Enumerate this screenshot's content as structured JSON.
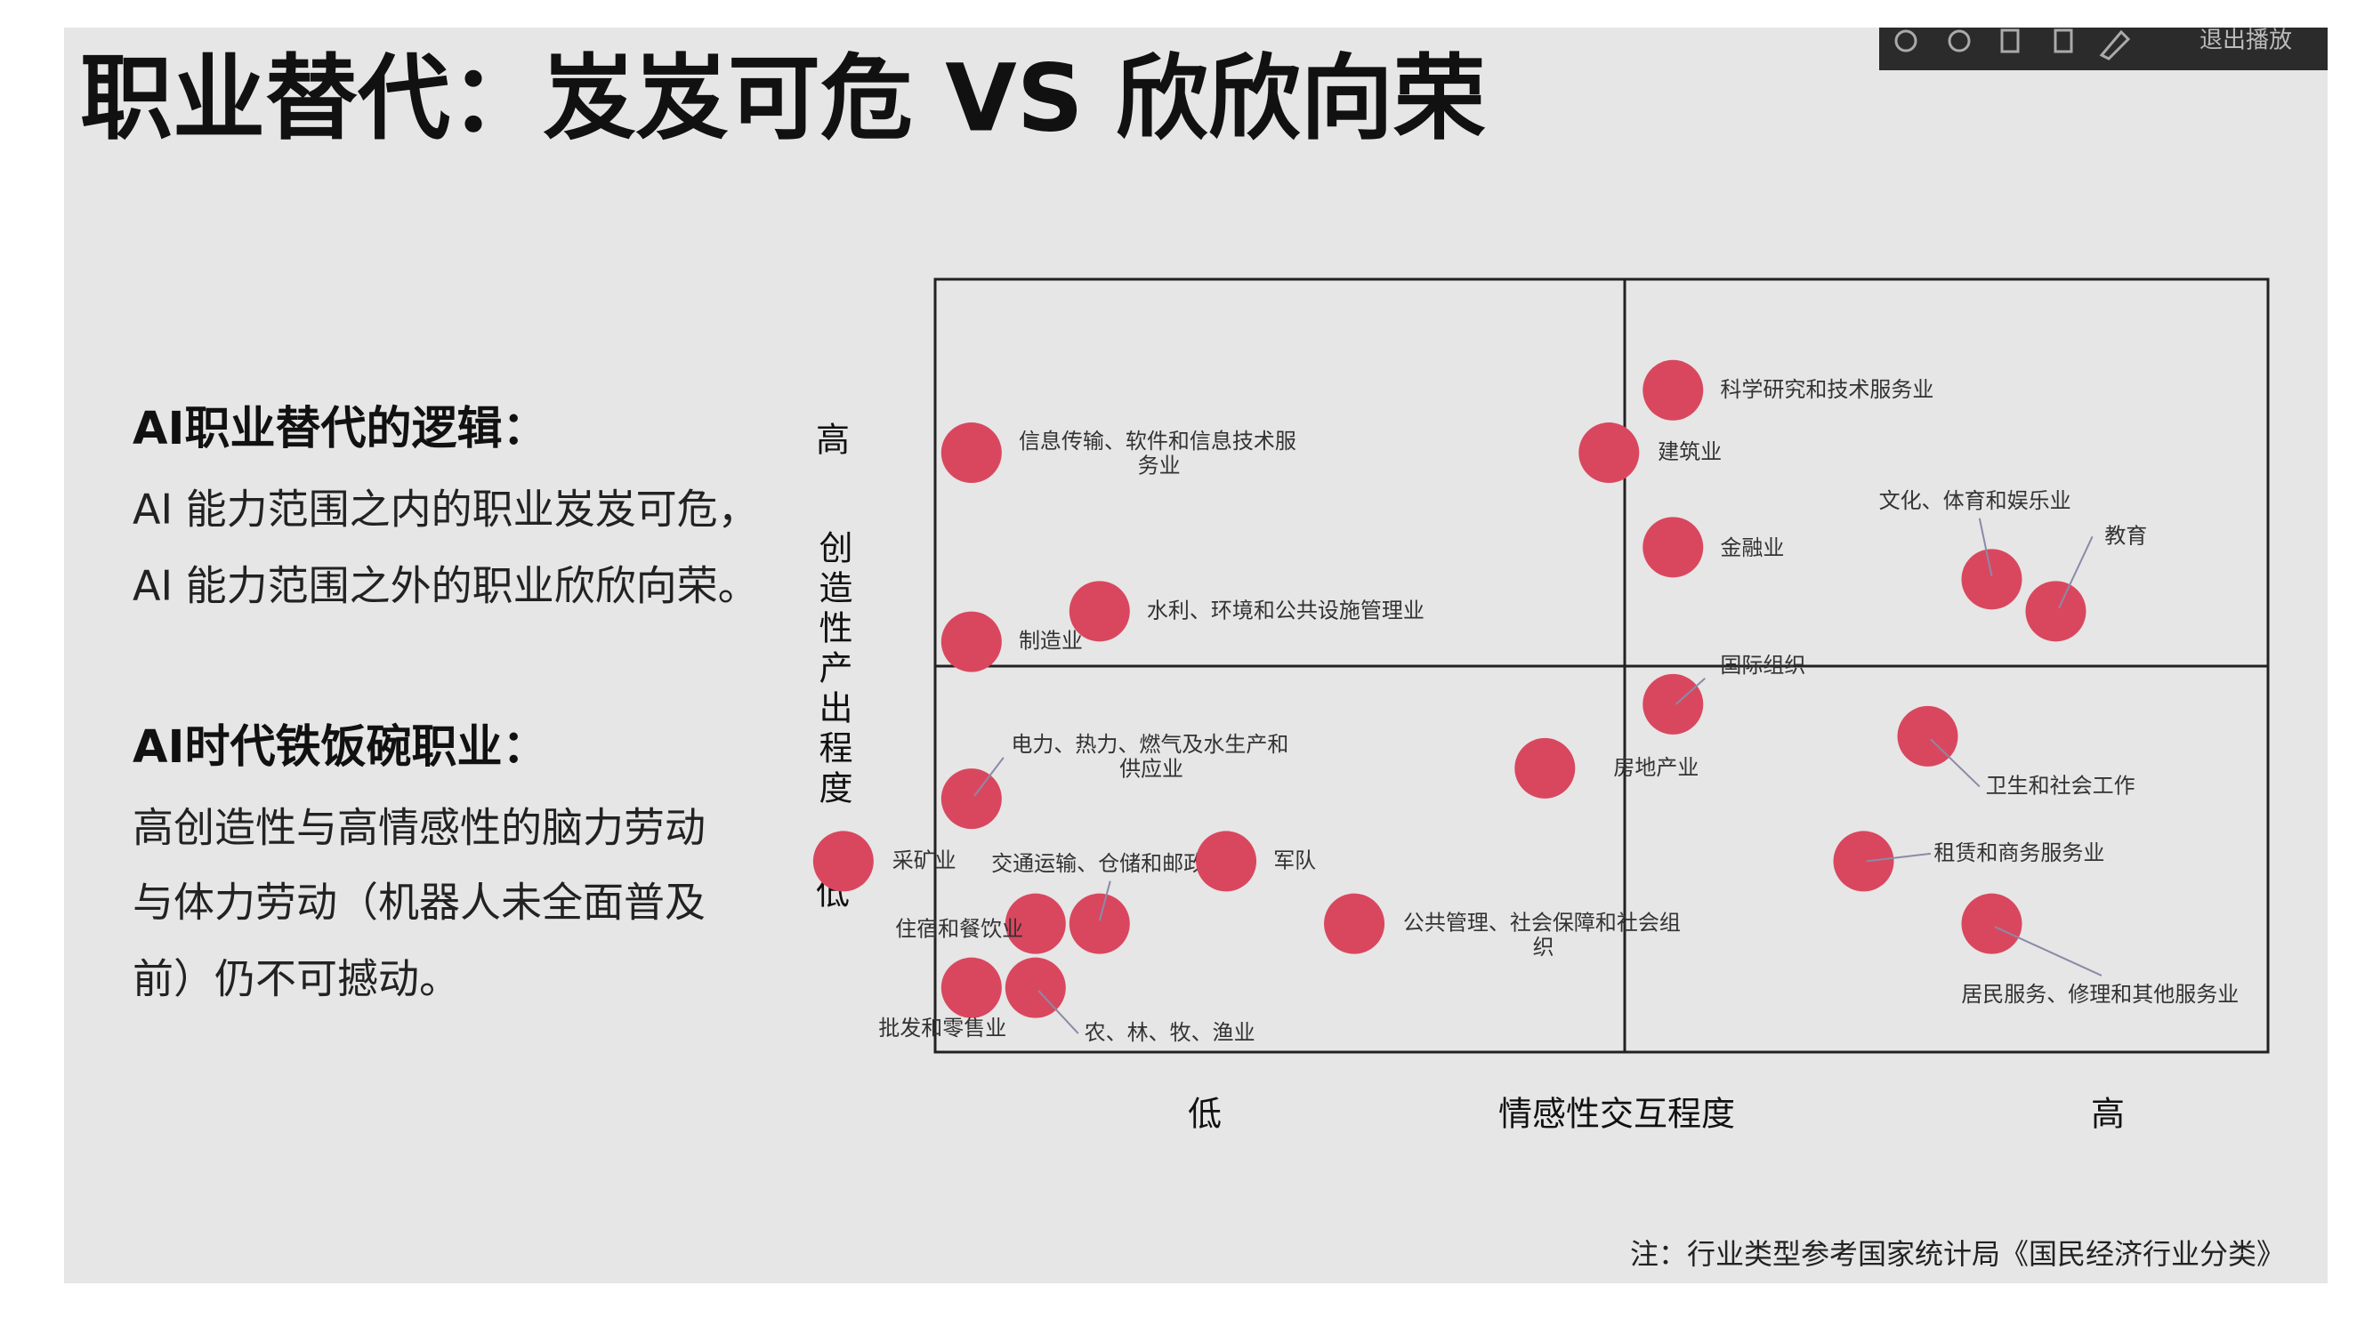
{
  "toolbar": {
    "exit": "退出播放"
  },
  "title": "职业替代：岌岌可危 VS 欣欣向荣",
  "sidebar": {
    "heading1": "AI职业替代的逻辑：",
    "lines1": [
      "AI 能力范围之内的职业岌岌可危，",
      "AI 能力范围之外的职业欣欣向荣。"
    ],
    "heading2": "AI时代铁饭碗职业：",
    "lines2": [
      "高创造性与高情感性的脑力劳动",
      "与体力劳动（机器人未全面普及",
      "前）仍不可撼动。"
    ]
  },
  "diagram": {
    "y_axis": {
      "high": "高",
      "label": "创造性产出程度",
      "low": "低"
    },
    "x_axis": {
      "low": "低",
      "label": "情感性交互程度",
      "high": "高"
    },
    "nodes": [
      {
        "lines": [
          "信息传输、软件和信息技术服",
          "务业"
        ]
      },
      {
        "lines": [
          "科学研究和技术服务业"
        ]
      },
      {
        "lines": [
          "建筑业"
        ]
      },
      {
        "lines": [
          "金融业"
        ]
      },
      {
        "lines": [
          "文化、体育和娱乐业"
        ]
      },
      {
        "lines": [
          "教育"
        ]
      },
      {
        "lines": [
          "水利、环境和公共设施管理业"
        ]
      },
      {
        "lines": [
          "制造业"
        ]
      },
      {
        "lines": [
          "国际组织"
        ]
      },
      {
        "lines": [
          "电力、热力、燃气及水生产和",
          "供应业"
        ]
      },
      {
        "lines": [
          "房地产业"
        ]
      },
      {
        "lines": [
          "卫生和社会工作"
        ]
      },
      {
        "lines": [
          "采矿业"
        ]
      },
      {
        "lines": [
          "交通运输、仓储和邮政业"
        ]
      },
      {
        "lines": [
          "军队"
        ]
      },
      {
        "lines": [
          "租赁和商务服务业"
        ]
      },
      {
        "lines": [
          "住宿和餐饮业"
        ]
      },
      {
        "lines": [
          "公共管理、社会保障和社会组",
          "织"
        ]
      },
      {
        "lines": [
          "居民服务、修理和其他服务业"
        ]
      },
      {
        "lines": [
          "批发和零售业"
        ]
      },
      {
        "lines": [
          "农、林、牧、渔业"
        ]
      }
    ]
  },
  "note": "注：行业类型参考国家统计局《国民经济行业分类》"
}
